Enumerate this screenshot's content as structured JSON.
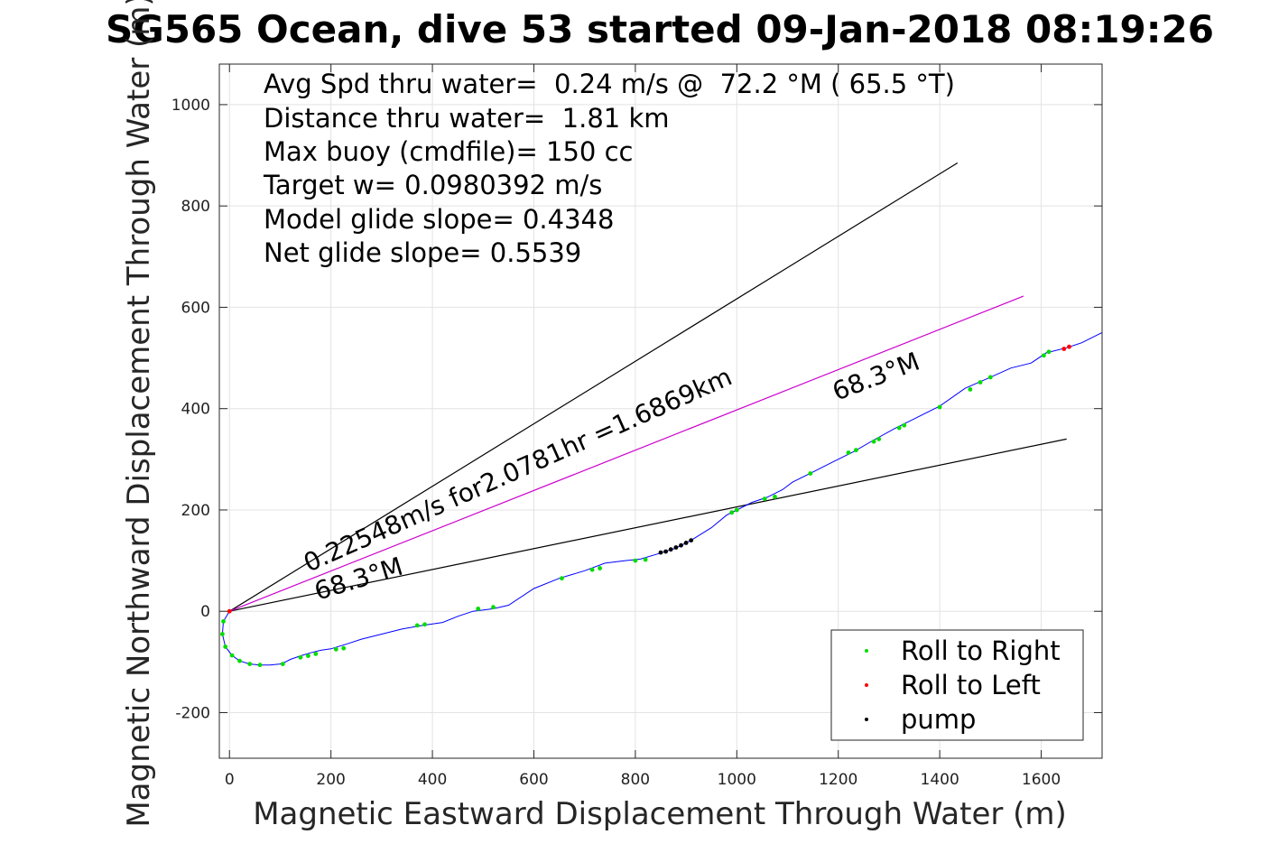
{
  "chart_data": {
    "type": "line",
    "title": "SG565 Ocean, dive 53 started 09-Jan-2018 08:19:26",
    "xlabel": "Magnetic Eastward Displacement Through Water (m)",
    "ylabel": "Magnetic Northward Displacement Through Water (m)",
    "xlim": [
      -20,
      1720
    ],
    "ylim": [
      -290,
      1080
    ],
    "xticks": [
      0,
      200,
      400,
      600,
      800,
      1000,
      1200,
      1400,
      1600
    ],
    "yticks": [
      -200,
      0,
      200,
      400,
      600,
      800,
      1000
    ],
    "grid": true,
    "info_lines": [
      "Avg Spd thru water=  0.24 m/s @  72.2 °M ( 65.5 °T)",
      "Distance thru water=  1.81 km",
      "Max buoy (cmdfile)= 150 cc",
      "Target w= 0.0980392 m/s",
      "Model glide slope= 0.4348",
      "Net glide slope= 0.5539"
    ],
    "annotations": [
      "0.22548m/s for2.0781hr =1.6869km",
      "68.3°M",
      "68.3°M"
    ],
    "series": [
      {
        "color": "#0000ff",
        "x": [
          0,
          -12,
          -14,
          -8,
          5,
          20,
          40,
          60,
          80,
          100,
          110,
          120,
          140,
          160,
          180,
          200,
          230,
          260,
          300,
          340,
          380,
          420,
          450,
          480,
          520,
          550,
          600,
          650,
          700,
          740,
          780,
          810,
          850,
          880,
          910,
          950,
          980,
          1000,
          1030,
          1060,
          1090,
          1110,
          1150,
          1190,
          1230,
          1270,
          1310,
          1350,
          1400,
          1450,
          1500,
          1540,
          1580,
          1610,
          1650,
          1680,
          1720
        ],
        "y": [
          0,
          -20,
          -45,
          -70,
          -87,
          -98,
          -104,
          -106,
          -106,
          -104,
          -100,
          -95,
          -88,
          -82,
          -77,
          -74,
          -65,
          -55,
          -45,
          -35,
          -28,
          -22,
          -10,
          0,
          5,
          12,
          45,
          65,
          80,
          95,
          100,
          103,
          115,
          125,
          140,
          165,
          190,
          200,
          215,
          225,
          240,
          255,
          275,
          295,
          315,
          338,
          360,
          380,
          405,
          440,
          462,
          480,
          490,
          510,
          520,
          530,
          550
        ]
      },
      {
        "name": "Roll to Right",
        "color": "#00dd00",
        "x": [
          -12,
          -14,
          -8,
          5,
          20,
          40,
          60,
          105,
          140,
          155,
          170,
          210,
          225,
          370,
          385,
          490,
          520,
          655,
          715,
          730,
          800,
          820,
          990,
          1000,
          1055,
          1075,
          1145,
          1220,
          1235,
          1270,
          1280,
          1320,
          1330,
          1400,
          1460,
          1480,
          1500,
          1605,
          1615
        ],
        "y": [
          -20,
          -45,
          -70,
          -87,
          -98,
          -104,
          -106,
          -104,
          -91,
          -88,
          -84,
          -75,
          -73,
          -28,
          -26,
          5,
          8,
          65,
          82,
          85,
          100,
          102,
          195,
          200,
          222,
          226,
          272,
          313,
          318,
          335,
          340,
          362,
          367,
          403,
          438,
          452,
          462,
          505,
          512
        ]
      },
      {
        "name": "Roll to Left",
        "color": "#ff0000",
        "x": [
          0,
          1645,
          1655
        ],
        "y": [
          0,
          518,
          522
        ]
      },
      {
        "name": "pump",
        "color": "#000000",
        "x": [
          850,
          860,
          870,
          880,
          890,
          900,
          910
        ],
        "y": [
          116,
          118,
          122,
          126,
          130,
          135,
          140
        ]
      },
      {
        "color": "#000000",
        "x": [
          0,
          1435
        ],
        "y": [
          0,
          885
        ]
      },
      {
        "color": "#000000",
        "x": [
          0,
          1650
        ],
        "y": [
          0,
          340
        ]
      },
      {
        "color": "#cc00cc",
        "x": [
          0,
          1565
        ],
        "y": [
          0,
          622
        ]
      }
    ],
    "legend": {
      "placement": "bottom-right",
      "entries": [
        {
          "label": "Roll to Right",
          "color": "#00dd00"
        },
        {
          "label": "Roll to Left",
          "color": "#ff0000"
        },
        {
          "label": "pump",
          "color": "#000000"
        }
      ]
    }
  }
}
